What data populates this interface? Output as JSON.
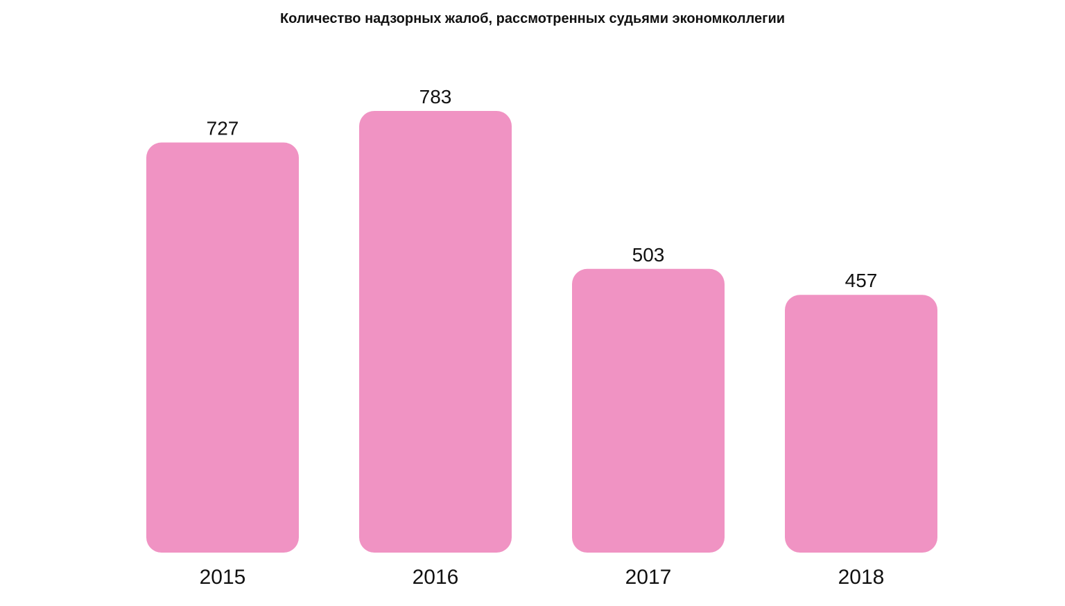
{
  "chart_data": {
    "type": "bar",
    "title": "Количество надзорных жалоб, рассмотренных судьями экономколлегии",
    "categories": [
      "2015",
      "2016",
      "2017",
      "2018"
    ],
    "values": [
      727,
      783,
      503,
      457
    ],
    "value_labels": [
      "727",
      "783",
      "503",
      "457"
    ],
    "xlabel": "",
    "ylabel": "",
    "ylim": [
      0,
      783
    ],
    "grid": false,
    "legend": "none",
    "colors": {
      "bar": "#f093c3",
      "text": "#111111",
      "background": "#ffffff"
    }
  }
}
